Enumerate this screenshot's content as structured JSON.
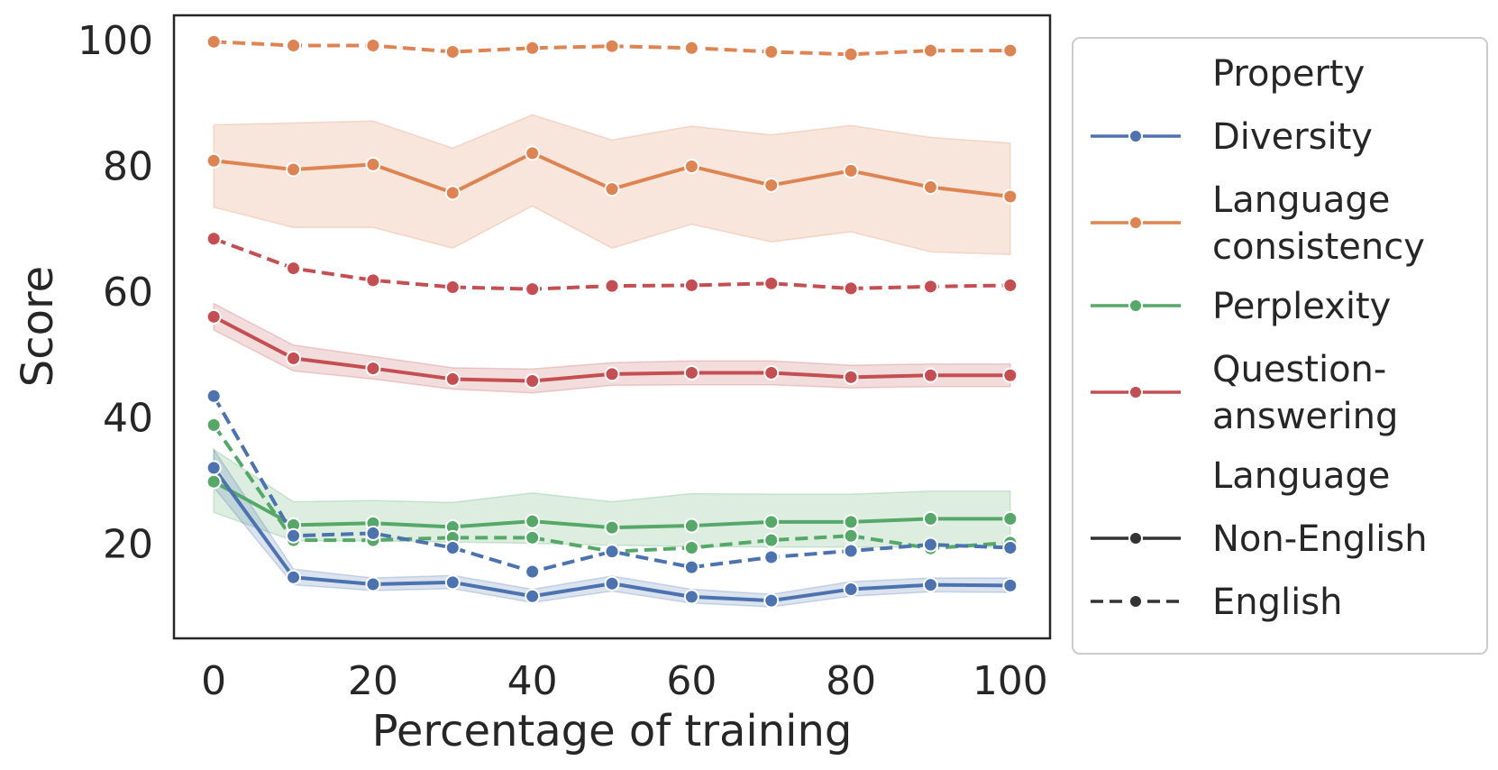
{
  "chart_data": {
    "type": "line",
    "xlabel": "Percentage of training",
    "ylabel": "Score",
    "xlim": [
      -5,
      105
    ],
    "ylim": [
      5,
      104
    ],
    "xticks": [
      0,
      20,
      40,
      60,
      80,
      100
    ],
    "yticks": [
      20,
      40,
      60,
      80,
      100
    ],
    "x": [
      0,
      10,
      20,
      30,
      40,
      50,
      60,
      70,
      80,
      90,
      100
    ],
    "grid": false,
    "legend_position": "outside-right",
    "legend": {
      "hue_title": "Property",
      "style_title": "Language",
      "hue_entries": [
        {
          "label_lines": [
            "Diversity"
          ],
          "color": "#4c72b0"
        },
        {
          "label_lines": [
            "Language",
            "consistency"
          ],
          "color": "#dd8452"
        },
        {
          "label_lines": [
            "Perplexity"
          ],
          "color": "#55a868"
        },
        {
          "label_lines": [
            "Question-",
            "answering"
          ],
          "color": "#c44e52"
        }
      ],
      "style_entries": [
        {
          "label": "Non-English",
          "dashed": false,
          "color": "#333333"
        },
        {
          "label": "English",
          "dashed": true,
          "color": "#333333"
        }
      ]
    },
    "series": [
      {
        "name": "Language consistency (English)",
        "color": "#dd8452",
        "dashed": true,
        "values": [
          99.8,
          99.2,
          99.2,
          98.2,
          98.8,
          99.1,
          98.8,
          98.2,
          97.8,
          98.4,
          98.4
        ]
      },
      {
        "name": "Language consistency (Non-English)",
        "color": "#dd8452",
        "dashed": false,
        "values": [
          80.9,
          79.5,
          80.3,
          75.8,
          82.1,
          76.4,
          80.0,
          77.0,
          79.3,
          76.7,
          75.2
        ],
        "band_low": [
          73.5,
          70.3,
          70.3,
          67.0,
          73.7,
          67.0,
          70.8,
          68.0,
          69.6,
          66.4,
          66.0
        ],
        "band_high": [
          86.6,
          86.9,
          87.2,
          82.9,
          88.2,
          84.2,
          86.4,
          85.0,
          86.5,
          84.6,
          83.7
        ]
      },
      {
        "name": "Question-answering (English)",
        "color": "#c44e52",
        "dashed": true,
        "values": [
          68.5,
          63.8,
          61.9,
          60.8,
          60.5,
          61.0,
          61.1,
          61.4,
          60.6,
          60.9,
          61.1
        ]
      },
      {
        "name": "Question-answering (Non-English)",
        "color": "#c44e52",
        "dashed": false,
        "values": [
          56.1,
          49.5,
          47.9,
          46.2,
          45.9,
          47.0,
          47.2,
          47.2,
          46.5,
          46.8,
          46.8
        ],
        "band_low": [
          54.0,
          47.5,
          46.2,
          44.6,
          44.0,
          45.2,
          45.3,
          45.3,
          44.8,
          45.0,
          45.0
        ],
        "band_high": [
          58.2,
          51.6,
          49.8,
          48.0,
          47.8,
          48.8,
          49.1,
          49.1,
          48.4,
          48.6,
          48.6
        ]
      },
      {
        "name": "Perplexity (Non-English)",
        "color": "#55a868",
        "dashed": false,
        "values": [
          29.9,
          23.0,
          23.3,
          22.7,
          23.6,
          22.6,
          22.9,
          23.5,
          23.5,
          24.0,
          24.0
        ],
        "band_low": [
          25.0,
          20.5,
          20.5,
          20.3,
          20.1,
          19.8,
          19.6,
          19.5,
          19.5,
          19.5,
          19.5
        ],
        "band_high": [
          35.0,
          26.7,
          26.9,
          26.6,
          28.1,
          26.7,
          28.0,
          27.9,
          27.9,
          28.4,
          28.4
        ]
      },
      {
        "name": "Perplexity (English)",
        "color": "#55a868",
        "dashed": true,
        "values": [
          38.9,
          20.6,
          20.6,
          21.0,
          21.0,
          18.8,
          19.4,
          20.6,
          21.3,
          19.3,
          20.2
        ]
      },
      {
        "name": "Diversity (English)",
        "color": "#4c72b0",
        "dashed": true,
        "values": [
          43.5,
          21.3,
          21.7,
          19.4,
          15.6,
          18.8,
          16.3,
          17.9,
          18.9,
          19.9,
          19.4
        ]
      },
      {
        "name": "Diversity (Non-English)",
        "color": "#4c72b0",
        "dashed": false,
        "values": [
          32.1,
          14.7,
          13.6,
          13.9,
          11.7,
          13.7,
          11.6,
          11.0,
          12.8,
          13.5,
          13.4
        ],
        "band_low": [
          29.0,
          13.5,
          12.6,
          12.9,
          10.7,
          12.5,
          10.6,
          10.0,
          11.7,
          12.4,
          12.3
        ],
        "band_high": [
          35.0,
          16.0,
          14.6,
          15.0,
          12.8,
          14.9,
          12.8,
          12.0,
          14.0,
          14.6,
          14.6
        ]
      }
    ]
  }
}
